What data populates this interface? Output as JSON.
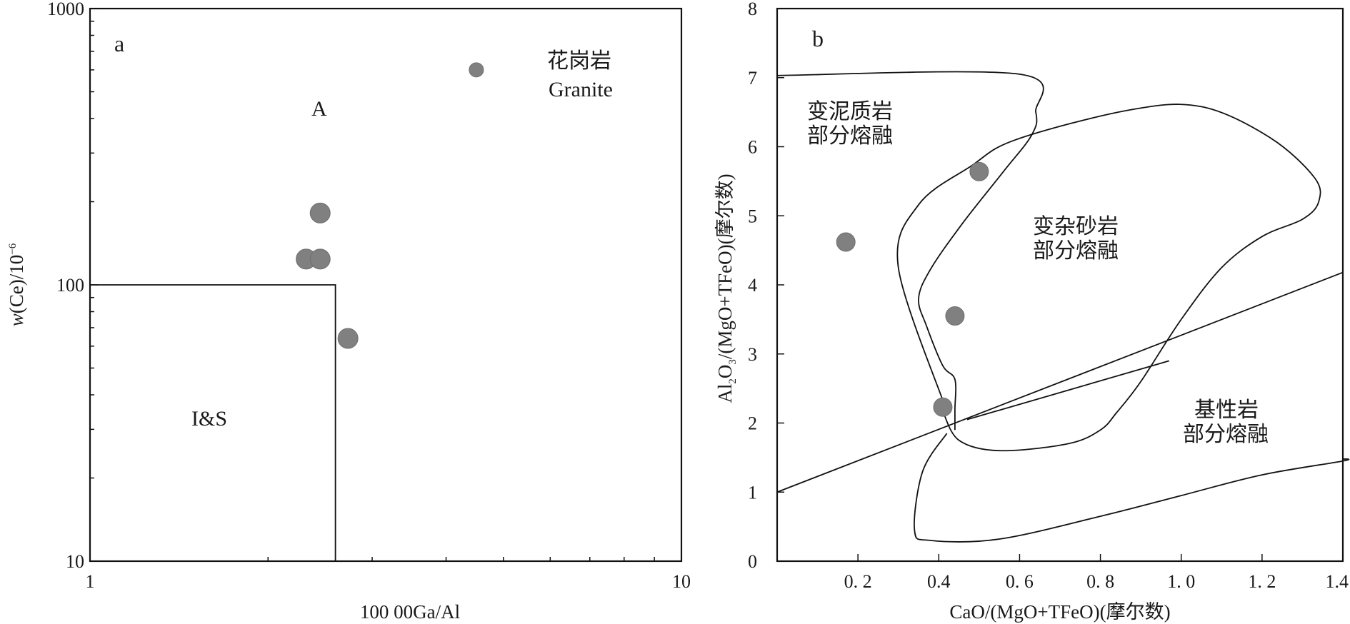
{
  "chart_data": [
    {
      "panel": "a",
      "type": "scatter",
      "xlabel": "100 00Ga/Al",
      "ylabel": "w(Ce)/10⁻⁶",
      "xscale": "log",
      "yscale": "log",
      "xlim": [
        1,
        10
      ],
      "ylim": [
        10,
        1000
      ],
      "x_ticks": [
        "1",
        "10"
      ],
      "y_ticks": [
        "10",
        "100",
        "1000"
      ],
      "series": [
        {
          "points": [
            {
              "x": 4.5,
              "y": 600
            },
            {
              "x": 2.45,
              "y": 182
            },
            {
              "x": 2.32,
              "y": 124
            },
            {
              "x": 2.45,
              "y": 124
            },
            {
              "x": 2.73,
              "y": 64
            }
          ]
        }
      ],
      "boundary": {
        "x": 2.6,
        "y": 100
      },
      "region_labels": [
        "A",
        "I&S",
        "花岗岩",
        "Granite"
      ]
    },
    {
      "panel": "b",
      "type": "scatter",
      "xlabel": "CaO/(MgO+TFeO)(摩尔数)",
      "ylabel": "Al2O3/(MgO+TFeO)(摩尔数)",
      "xlim": [
        0,
        1.4
      ],
      "ylim": [
        0,
        8
      ],
      "x_ticks": [
        "0. 2",
        "0.4",
        "0. 6",
        "0. 8",
        "1. 0",
        "1. 2",
        "1.4"
      ],
      "x_tick_values": [
        0.2,
        0.4,
        0.6,
        0.8,
        1.0,
        1.2,
        1.4
      ],
      "y_ticks": [
        "0",
        "1",
        "2",
        "3",
        "4",
        "5",
        "6",
        "7",
        "8"
      ],
      "series": [
        {
          "points": [
            {
              "x": 0.5,
              "y": 5.64
            },
            {
              "x": 0.17,
              "y": 4.62
            },
            {
              "x": 0.44,
              "y": 3.55
            },
            {
              "x": 0.41,
              "y": 2.23
            }
          ]
        }
      ],
      "fields": [
        {
          "label_lines": [
            "变泥质岩",
            "部分熔融"
          ],
          "points": [
            [
              0,
              7.03
            ],
            [
              0.6,
              7.05
            ],
            [
              0.64,
              6.5
            ],
            [
              0.63,
              6.17
            ],
            [
              0.56,
              5.64
            ],
            [
              0.46,
              4.9
            ],
            [
              0.38,
              4.23
            ],
            [
              0.35,
              3.8
            ],
            [
              0.37,
              3.4
            ],
            [
              0.41,
              2.83
            ],
            [
              0.44,
              2.63
            ],
            [
              0.44,
              2.2
            ],
            [
              0.44,
              1.9
            ]
          ]
        },
        {
          "label_lines": [
            "变杂砂岩",
            "部分熔融"
          ],
          "points": [
            [
              0.42,
              2.17
            ],
            [
              0.3,
              4.25
            ],
            [
              0.35,
              5.16
            ],
            [
              0.48,
              5.72
            ],
            [
              0.59,
              6.1
            ],
            [
              0.87,
              6.53
            ],
            [
              1.05,
              6.58
            ],
            [
              1.22,
              6.13
            ],
            [
              1.33,
              5.55
            ],
            [
              1.34,
              5.2
            ],
            [
              1.3,
              4.95
            ],
            [
              1.2,
              4.7
            ],
            [
              1.1,
              4.25
            ],
            [
              1.0,
              3.5
            ],
            [
              0.9,
              2.6
            ],
            [
              0.84,
              2.15
            ],
            [
              0.8,
              1.9
            ],
            [
              0.72,
              1.7
            ],
            [
              0.55,
              1.6
            ],
            [
              0.45,
              1.75
            ],
            [
              0.41,
              2.17
            ]
          ]
        },
        {
          "label_lines": [
            "基性岩",
            "部分熔融"
          ],
          "points": [
            [
              0.42,
              1.85
            ],
            [
              0.36,
              1.3
            ],
            [
              0.34,
              0.45
            ],
            [
              0.38,
              0.3
            ],
            [
              0.55,
              0.32
            ],
            [
              0.8,
              0.65
            ],
            [
              1.0,
              0.95
            ],
            [
              1.2,
              1.25
            ],
            [
              1.4,
              1.45
            ],
            [
              1.4,
              1.48
            ]
          ]
        }
      ],
      "lines": [
        {
          "from": [
            0,
            1.0
          ],
          "to": [
            1.4,
            4.18
          ]
        },
        {
          "from": [
            0.47,
            2.05
          ],
          "to": [
            0.97,
            2.9
          ]
        }
      ]
    }
  ],
  "labels": {
    "panel_a": "a",
    "panel_b": "b",
    "region_a_upper": "A",
    "region_a_lower": "I&S",
    "granite_cn": "花岗岩",
    "granite_en": "Granite",
    "xlabel_a": "100 00Ga/Al",
    "ylabel_a_w": "w",
    "ylabel_a_rest": "(Ce)/10",
    "ylabel_a_exp": "−6",
    "xlabel_b": "CaO/(MgO+TFeO)(摩尔数)",
    "ylabel_b_pre": "Al",
    "ylabel_b_sub2": "2",
    "ylabel_b_o": "O",
    "ylabel_b_sub3": "3",
    "ylabel_b_rest": "/(MgO+TFeO)(摩尔数)",
    "field1_line1": "变泥质岩",
    "field1_line2": "部分熔融",
    "field2_line1": "变杂砂岩",
    "field2_line2": "部分熔融",
    "field3_line1": "基性岩",
    "field3_line2": "部分熔融",
    "colors": {
      "point": "#808080",
      "line": "#111111"
    }
  }
}
